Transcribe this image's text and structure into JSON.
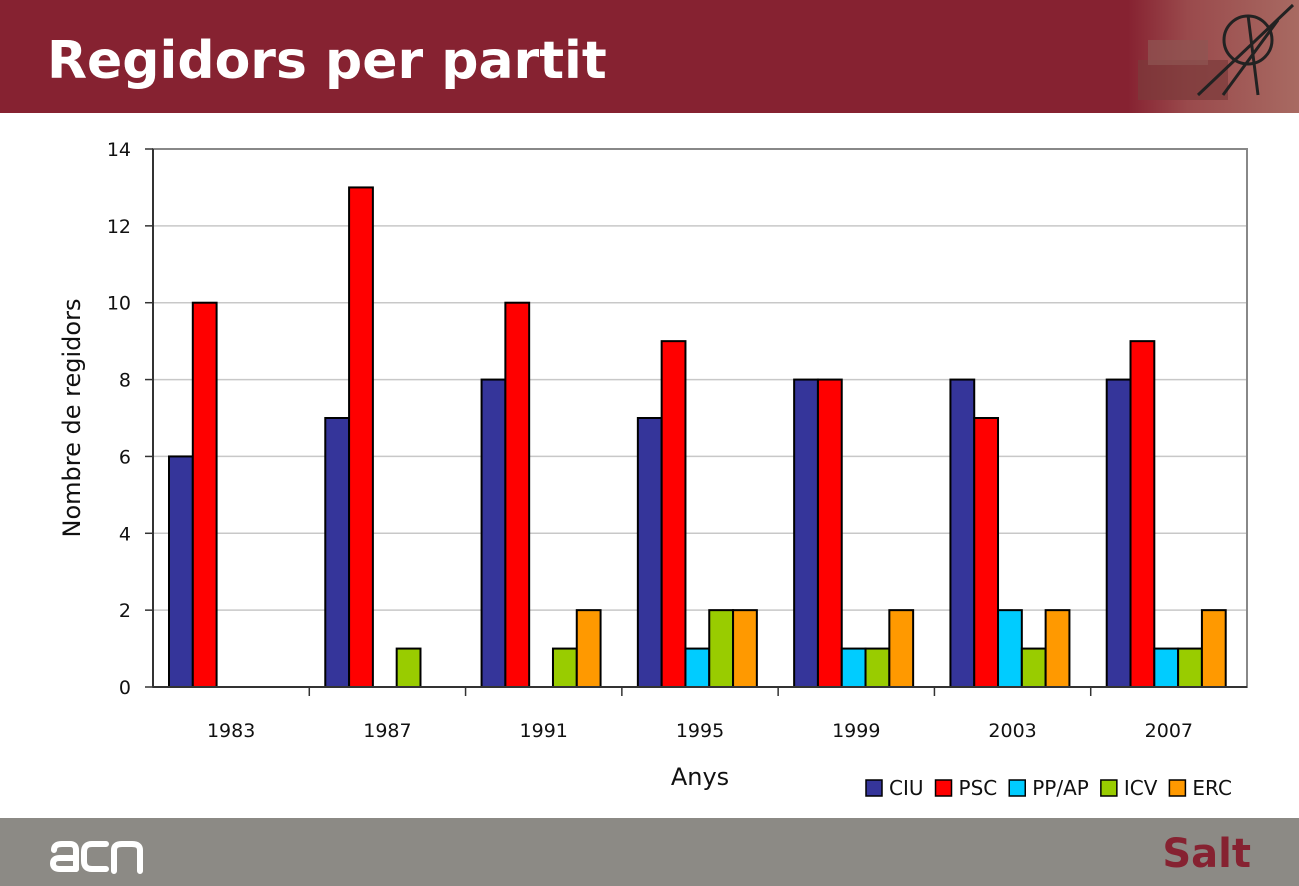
{
  "slide": {
    "title": "Regidors per partit",
    "brand": "acn",
    "town": "Salt"
  },
  "colors": {
    "header": "#862231",
    "footer": "#8c8a85"
  },
  "chart_data": {
    "type": "bar",
    "categories": [
      "1983",
      "1987",
      "1991",
      "1995",
      "1999",
      "2003",
      "2007"
    ],
    "series": [
      {
        "name": "CIU",
        "color": "#35359a",
        "values": [
          6,
          7,
          8,
          7,
          8,
          8,
          8
        ]
      },
      {
        "name": "PSC",
        "color": "#ff0000",
        "values": [
          10,
          13,
          10,
          9,
          8,
          7,
          9
        ]
      },
      {
        "name": "PP/AP",
        "color": "#00ccff",
        "values": [
          0,
          0,
          0,
          1,
          1,
          2,
          1
        ]
      },
      {
        "name": "ICV",
        "color": "#99cc00",
        "values": [
          0,
          1,
          1,
          2,
          1,
          1,
          1
        ]
      },
      {
        "name": "ERC",
        "color": "#ff9900",
        "values": [
          0,
          0,
          2,
          2,
          2,
          2,
          2
        ]
      }
    ],
    "xlabel": "Anys",
    "ylabel": "Nombre de regidors",
    "ylim": [
      0,
      14
    ],
    "yticks": [
      0,
      2,
      4,
      6,
      8,
      10,
      12,
      14
    ],
    "grid": true,
    "legend": "bottom-right"
  }
}
